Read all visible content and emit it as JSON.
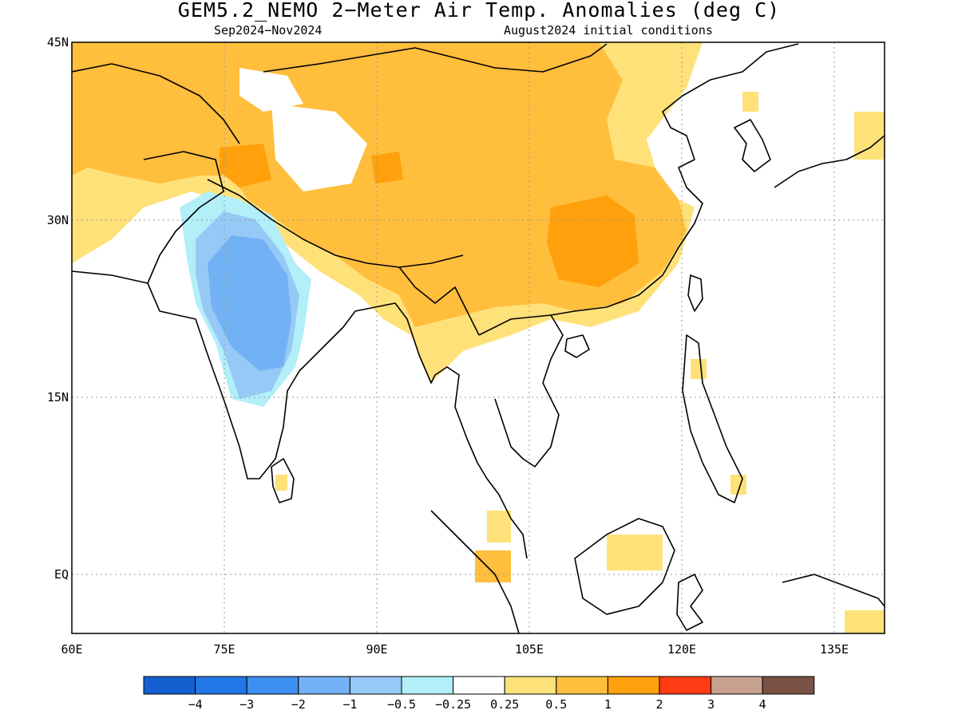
{
  "title": "GEM5.2_NEMO 2−Meter Air Temp. Anomalies (deg C)",
  "subtitle_left": "Sep2024−Nov2024",
  "subtitle_right": "August2024 initial conditions",
  "map": {
    "lon_range": [
      60,
      140
    ],
    "lat_range": [
      -5,
      45
    ],
    "lat_labels": [
      "45N",
      "30N",
      "15N",
      "EQ"
    ],
    "lon_labels": [
      "60E",
      "75E",
      "90E",
      "105E",
      "120E",
      "135E"
    ]
  },
  "colorbar": {
    "colors": [
      "#1560d0",
      "#2277e8",
      "#3d8ff0",
      "#72b1f4",
      "#97c9f7",
      "#b2eff8",
      "#ffffff",
      "#ffe17a",
      "#ffbe3c",
      "#ffa00c",
      "#ff3c14",
      "#c8a090",
      "#7a5245"
    ],
    "labels": [
      "−4",
      "−3",
      "−2",
      "−1",
      "−0.5",
      "−0.25",
      "0.25",
      "0.5",
      "1",
      "2",
      "3",
      "4"
    ]
  }
}
